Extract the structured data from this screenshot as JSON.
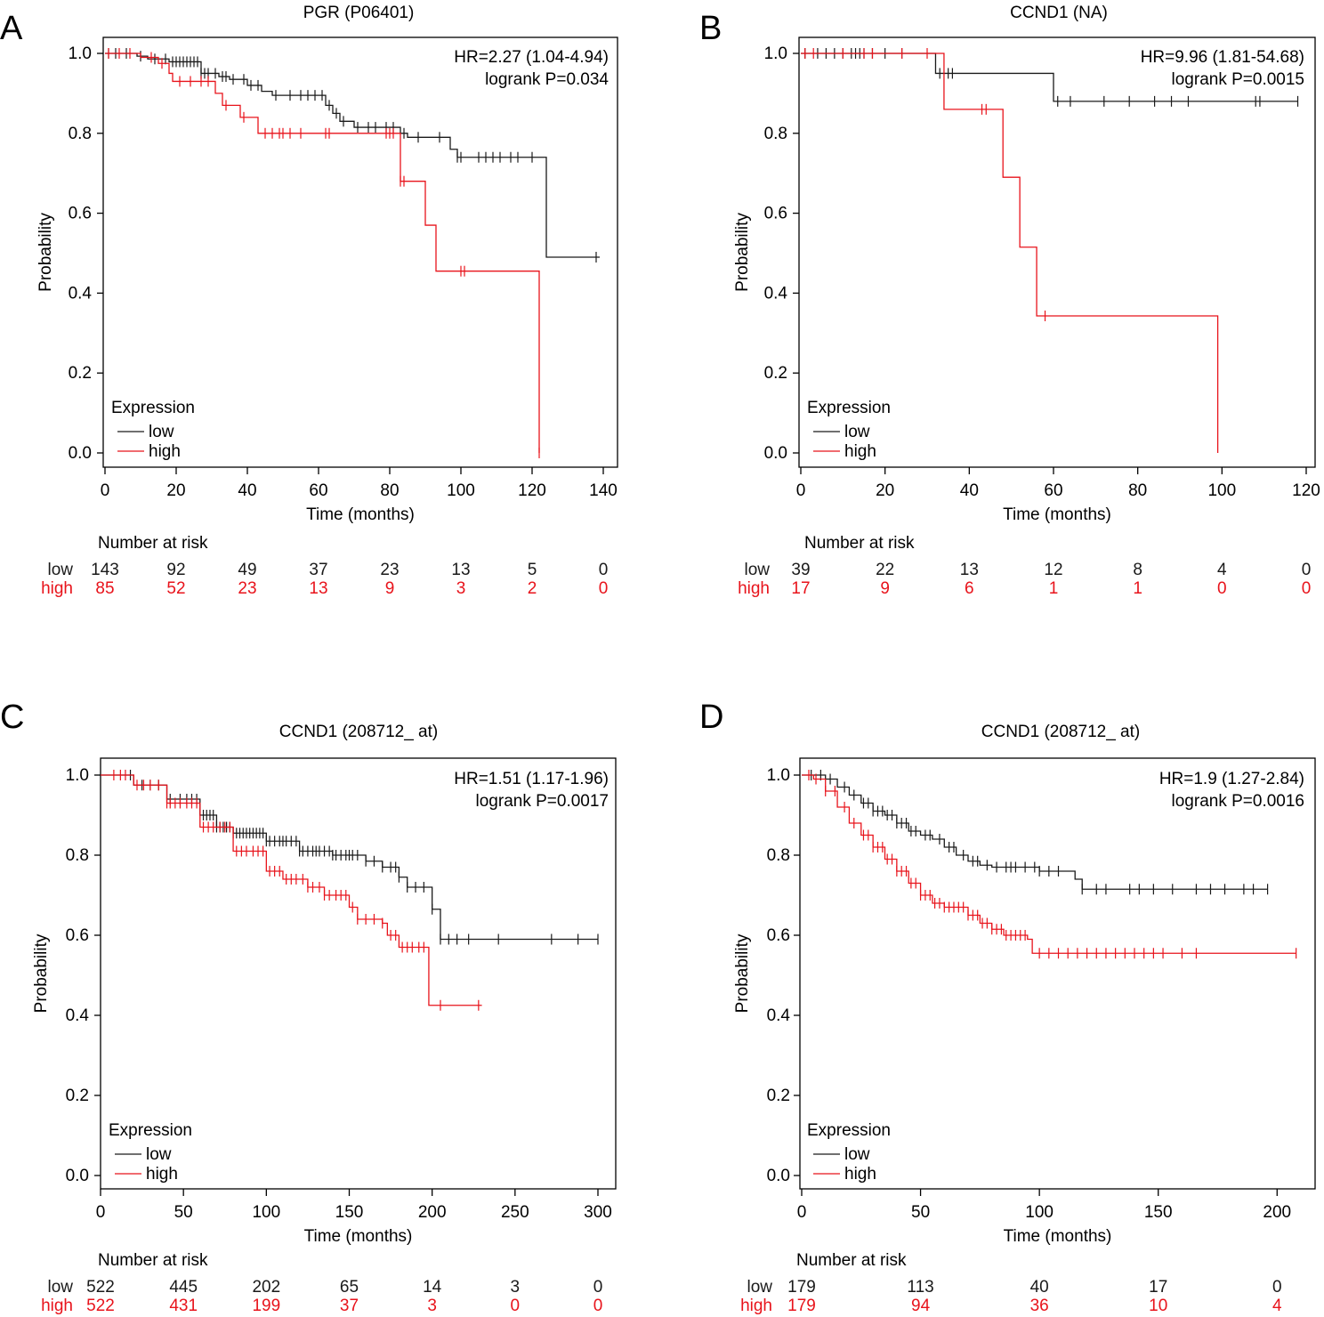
{
  "colors": {
    "low": "#1a1a1a",
    "high": "#e8131b",
    "axis": "#000000"
  },
  "chart_data": [
    {
      "type": "line",
      "panel_letter": "A",
      "title": "PGR (P06401)",
      "xlabel": "Time (months)",
      "ylabel": "Probability",
      "xlim": [
        0,
        140
      ],
      "ylim": [
        0,
        1
      ],
      "x_ticks": [
        0,
        20,
        40,
        60,
        80,
        100,
        120,
        140
      ],
      "y_ticks": [
        "0.0",
        "0.2",
        "0.4",
        "0.6",
        "0.8",
        "1.0"
      ],
      "stats": [
        "HR=2.27 (1.04-4.94)",
        "logrank P=0.034"
      ],
      "legend": {
        "title": "Expression",
        "entries": [
          "low",
          "high"
        ],
        "position": "bottom-left"
      },
      "series": [
        {
          "name": "low",
          "steps": [
            [
              0,
              1
            ],
            [
              9,
              0.993
            ],
            [
              12,
              0.986
            ],
            [
              18,
              0.979
            ],
            [
              27,
              0.95
            ],
            [
              32,
              0.942
            ],
            [
              35,
              0.935
            ],
            [
              40,
              0.92
            ],
            [
              44,
              0.905
            ],
            [
              47,
              0.895
            ],
            [
              62,
              0.87
            ],
            [
              64,
              0.85
            ],
            [
              66,
              0.83
            ],
            [
              70,
              0.815
            ],
            [
              83,
              0.8
            ],
            [
              85,
              0.79
            ],
            [
              97,
              0.76
            ],
            [
              99,
              0.74
            ],
            [
              124,
              0.49
            ],
            [
              139,
              0.49
            ]
          ],
          "censors": [
            1,
            3,
            6,
            10,
            14,
            17,
            19,
            20,
            21,
            22,
            23,
            24,
            25,
            26,
            27,
            28,
            29,
            31,
            33,
            34,
            36,
            39,
            41,
            43,
            48,
            52,
            55,
            57,
            59,
            61,
            63,
            65,
            67,
            71,
            74,
            76,
            79,
            81,
            84,
            88,
            94,
            99,
            100,
            105,
            107,
            109,
            111,
            114,
            116,
            120,
            138,
            140
          ]
        },
        {
          "name": "high",
          "steps": [
            [
              0,
              1
            ],
            [
              10,
              0.99
            ],
            [
              15,
              0.975
            ],
            [
              18,
              0.95
            ],
            [
              19,
              0.93
            ],
            [
              31,
              0.9
            ],
            [
              33,
              0.87
            ],
            [
              38,
              0.84
            ],
            [
              43,
              0.8
            ],
            [
              83,
              0.68
            ],
            [
              90,
              0.57
            ],
            [
              93,
              0.455
            ],
            [
              122,
              0
            ],
            [
              122,
              0
            ]
          ],
          "censors": [
            1,
            4,
            7,
            13,
            16,
            21,
            24,
            27,
            29,
            34,
            39,
            45,
            47,
            49,
            50,
            52,
            55,
            62,
            63,
            79,
            80,
            81,
            83,
            84,
            100,
            101,
            122
          ]
        }
      ],
      "risk_table": {
        "title": "Number at risk",
        "times": [
          0,
          20,
          40,
          60,
          80,
          100,
          120,
          140
        ],
        "low": [
          "143",
          "92",
          "49",
          "37",
          "23",
          "13",
          "5",
          "0"
        ],
        "high": [
          "85",
          "52",
          "23",
          "13",
          "9",
          "3",
          "2",
          "0"
        ]
      }
    },
    {
      "type": "line",
      "panel_letter": "B",
      "title": "CCND1 (NA)",
      "xlabel": "Time (months)",
      "ylabel": "Probability",
      "xlim": [
        0,
        120
      ],
      "ylim": [
        0,
        1
      ],
      "x_ticks": [
        0,
        20,
        40,
        60,
        80,
        100,
        120
      ],
      "y_ticks": [
        "0.0",
        "0.2",
        "0.4",
        "0.6",
        "0.8",
        "1.0"
      ],
      "stats": [
        "HR=9.96 (1.81-54.68)",
        "logrank P=0.0015"
      ],
      "legend": {
        "title": "Expression",
        "entries": [
          "low",
          "high"
        ],
        "position": "bottom-left"
      },
      "series": [
        {
          "name": "low",
          "steps": [
            [
              0,
              1
            ],
            [
              32,
              0.95
            ],
            [
              60,
              0.88
            ],
            [
              118,
              0.88
            ]
          ],
          "censors": [
            1,
            4,
            6,
            8,
            10,
            12,
            13,
            14,
            15,
            17,
            20,
            24,
            33,
            35,
            36,
            61,
            64,
            72,
            78,
            84,
            88,
            92,
            108,
            109,
            118
          ]
        },
        {
          "name": "high",
          "steps": [
            [
              0,
              1
            ],
            [
              34,
              0.86
            ],
            [
              48,
              0.69
            ],
            [
              52,
              0.515
            ],
            [
              56,
              0.343
            ],
            [
              99,
              0
            ],
            [
              99,
              0
            ]
          ],
          "censors": [
            1,
            3,
            10,
            15,
            17,
            24,
            30,
            44,
            43,
            58
          ]
        }
      ],
      "risk_table": {
        "title": "Number at risk",
        "times": [
          0,
          20,
          40,
          60,
          80,
          100,
          120
        ],
        "low": [
          "39",
          "22",
          "13",
          "12",
          "8",
          "4",
          "0"
        ],
        "high": [
          "17",
          "9",
          "6",
          "1",
          "1",
          "0",
          "0"
        ]
      }
    },
    {
      "type": "line",
      "panel_letter": "C",
      "title": "CCND1 (208712_ at)",
      "xlabel": "Time (months)",
      "ylabel": "Probability",
      "xlim": [
        0,
        300
      ],
      "ylim": [
        0,
        1
      ],
      "x_ticks": [
        0,
        50,
        100,
        150,
        200,
        250,
        300
      ],
      "y_ticks": [
        "0.0",
        "0.2",
        "0.4",
        "0.6",
        "0.8",
        "1.0"
      ],
      "stats": [
        "HR=1.51 (1.17-1.96)",
        "logrank P=0.0017"
      ],
      "legend": {
        "title": "Expression",
        "entries": [
          "low",
          "high"
        ],
        "position": "bottom-left"
      },
      "series": [
        {
          "name": "low",
          "steps": [
            [
              0,
              1
            ],
            [
              20,
              0.975
            ],
            [
              40,
              0.94
            ],
            [
              60,
              0.9
            ],
            [
              70,
              0.87
            ],
            [
              80,
              0.855
            ],
            [
              100,
              0.835
            ],
            [
              120,
              0.81
            ],
            [
              140,
              0.8
            ],
            [
              160,
              0.785
            ],
            [
              170,
              0.77
            ],
            [
              175,
              0.77
            ],
            [
              180,
              0.745
            ],
            [
              185,
              0.72
            ],
            [
              200,
              0.665
            ],
            [
              205,
              0.59
            ],
            [
              300,
              0.59
            ]
          ],
          "censors": [
            18,
            25,
            30,
            35,
            42,
            48,
            52,
            55,
            58,
            62,
            64,
            66,
            68,
            70,
            72,
            74,
            76,
            78,
            80,
            82,
            84,
            86,
            88,
            90,
            92,
            94,
            96,
            98,
            100,
            102,
            105,
            108,
            110,
            112,
            115,
            118,
            120,
            122,
            125,
            128,
            130,
            132,
            135,
            138,
            140,
            142,
            145,
            148,
            150,
            152,
            155,
            160,
            165,
            170,
            175,
            178,
            180,
            185,
            190,
            195,
            200,
            205,
            210,
            215,
            222,
            240,
            272,
            288,
            300
          ]
        },
        {
          "name": "high",
          "steps": [
            [
              0,
              1
            ],
            [
              20,
              0.975
            ],
            [
              40,
              0.93
            ],
            [
              60,
              0.87
            ],
            [
              80,
              0.81
            ],
            [
              100,
              0.76
            ],
            [
              110,
              0.74
            ],
            [
              125,
              0.72
            ],
            [
              135,
              0.7
            ],
            [
              150,
              0.67
            ],
            [
              155,
              0.64
            ],
            [
              170,
              0.63
            ],
            [
              173,
              0.6
            ],
            [
              180,
              0.57
            ],
            [
              198,
              0.57
            ],
            [
              198,
              0.425
            ],
            [
              230,
              0.425
            ]
          ],
          "censors": [
            8,
            12,
            15,
            22,
            26,
            30,
            35,
            40,
            42,
            45,
            48,
            52,
            55,
            58,
            62,
            65,
            68,
            72,
            75,
            78,
            82,
            85,
            88,
            92,
            95,
            98,
            102,
            105,
            108,
            112,
            115,
            118,
            122,
            125,
            128,
            132,
            135,
            138,
            142,
            145,
            148,
            152,
            155,
            160,
            165,
            170,
            175,
            178,
            182,
            185,
            188,
            192,
            195,
            205,
            228
          ]
        }
      ],
      "risk_table": {
        "title": "Number at risk",
        "times": [
          0,
          50,
          100,
          150,
          200,
          250,
          300
        ],
        "low": [
          "522",
          "445",
          "202",
          "65",
          "14",
          "3",
          "0"
        ],
        "high": [
          "522",
          "431",
          "199",
          "37",
          "3",
          "0",
          "0"
        ]
      }
    },
    {
      "type": "line",
      "panel_letter": "D",
      "title": "CCND1 (208712_ at)",
      "xlabel": "Time (months)",
      "ylabel": "Probability",
      "xlim": [
        0,
        210
      ],
      "ylim": [
        0,
        1
      ],
      "x_ticks": [
        0,
        50,
        100,
        150,
        200
      ],
      "y_ticks": [
        "0.0",
        "0.2",
        "0.4",
        "0.6",
        "0.8",
        "1.0"
      ],
      "stats": [
        "HR=1.9 (1.27-2.84)",
        "logrank P=0.0016"
      ],
      "legend": {
        "title": "Expression",
        "entries": [
          "low",
          "high"
        ],
        "position": "bottom-left"
      },
      "series": [
        {
          "name": "low",
          "steps": [
            [
              0,
              1
            ],
            [
              10,
              0.99
            ],
            [
              15,
              0.97
            ],
            [
              20,
              0.95
            ],
            [
              25,
              0.93
            ],
            [
              30,
              0.91
            ],
            [
              35,
              0.9
            ],
            [
              40,
              0.88
            ],
            [
              45,
              0.86
            ],
            [
              50,
              0.85
            ],
            [
              55,
              0.84
            ],
            [
              60,
              0.82
            ],
            [
              65,
              0.8
            ],
            [
              70,
              0.785
            ],
            [
              75,
              0.775
            ],
            [
              80,
              0.77
            ],
            [
              100,
              0.76
            ],
            [
              115,
              0.74
            ],
            [
              118,
              0.715
            ],
            [
              196,
              0.715
            ]
          ],
          "censors": [
            4,
            8,
            12,
            18,
            22,
            26,
            28,
            30,
            32,
            34,
            36,
            38,
            40,
            42,
            44,
            46,
            48,
            52,
            54,
            58,
            62,
            64,
            68,
            72,
            74,
            78,
            82,
            86,
            88,
            90,
            94,
            98,
            100,
            104,
            108,
            118,
            124,
            128,
            138,
            142,
            148,
            156,
            166,
            172,
            178,
            186,
            190,
            196
          ]
        },
        {
          "name": "high",
          "steps": [
            [
              0,
              1
            ],
            [
              5,
              0.99
            ],
            [
              10,
              0.96
            ],
            [
              15,
              0.92
            ],
            [
              20,
              0.88
            ],
            [
              25,
              0.85
            ],
            [
              30,
              0.82
            ],
            [
              35,
              0.79
            ],
            [
              40,
              0.76
            ],
            [
              45,
              0.73
            ],
            [
              50,
              0.7
            ],
            [
              55,
              0.68
            ],
            [
              60,
              0.67
            ],
            [
              70,
              0.65
            ],
            [
              75,
              0.63
            ],
            [
              80,
              0.615
            ],
            [
              85,
              0.6
            ],
            [
              95,
              0.59
            ],
            [
              97,
              0.555
            ],
            [
              208,
              0.555
            ]
          ],
          "censors": [
            3,
            6,
            10,
            14,
            18,
            22,
            26,
            28,
            30,
            32,
            34,
            36,
            38,
            40,
            42,
            44,
            46,
            48,
            50,
            52,
            54,
            56,
            58,
            60,
            62,
            64,
            66,
            68,
            70,
            72,
            74,
            76,
            78,
            80,
            82,
            84,
            86,
            88,
            90,
            92,
            94,
            100,
            104,
            108,
            112,
            116,
            120,
            124,
            128,
            132,
            136,
            140,
            144,
            148,
            152,
            160,
            166,
            208,
            210
          ]
        }
      ],
      "risk_table": {
        "title": "Number at risk",
        "times": [
          0,
          50,
          100,
          150,
          200
        ],
        "low": [
          "179",
          "113",
          "40",
          "17",
          "0"
        ],
        "high": [
          "179",
          "94",
          "36",
          "10",
          "4"
        ]
      }
    }
  ]
}
